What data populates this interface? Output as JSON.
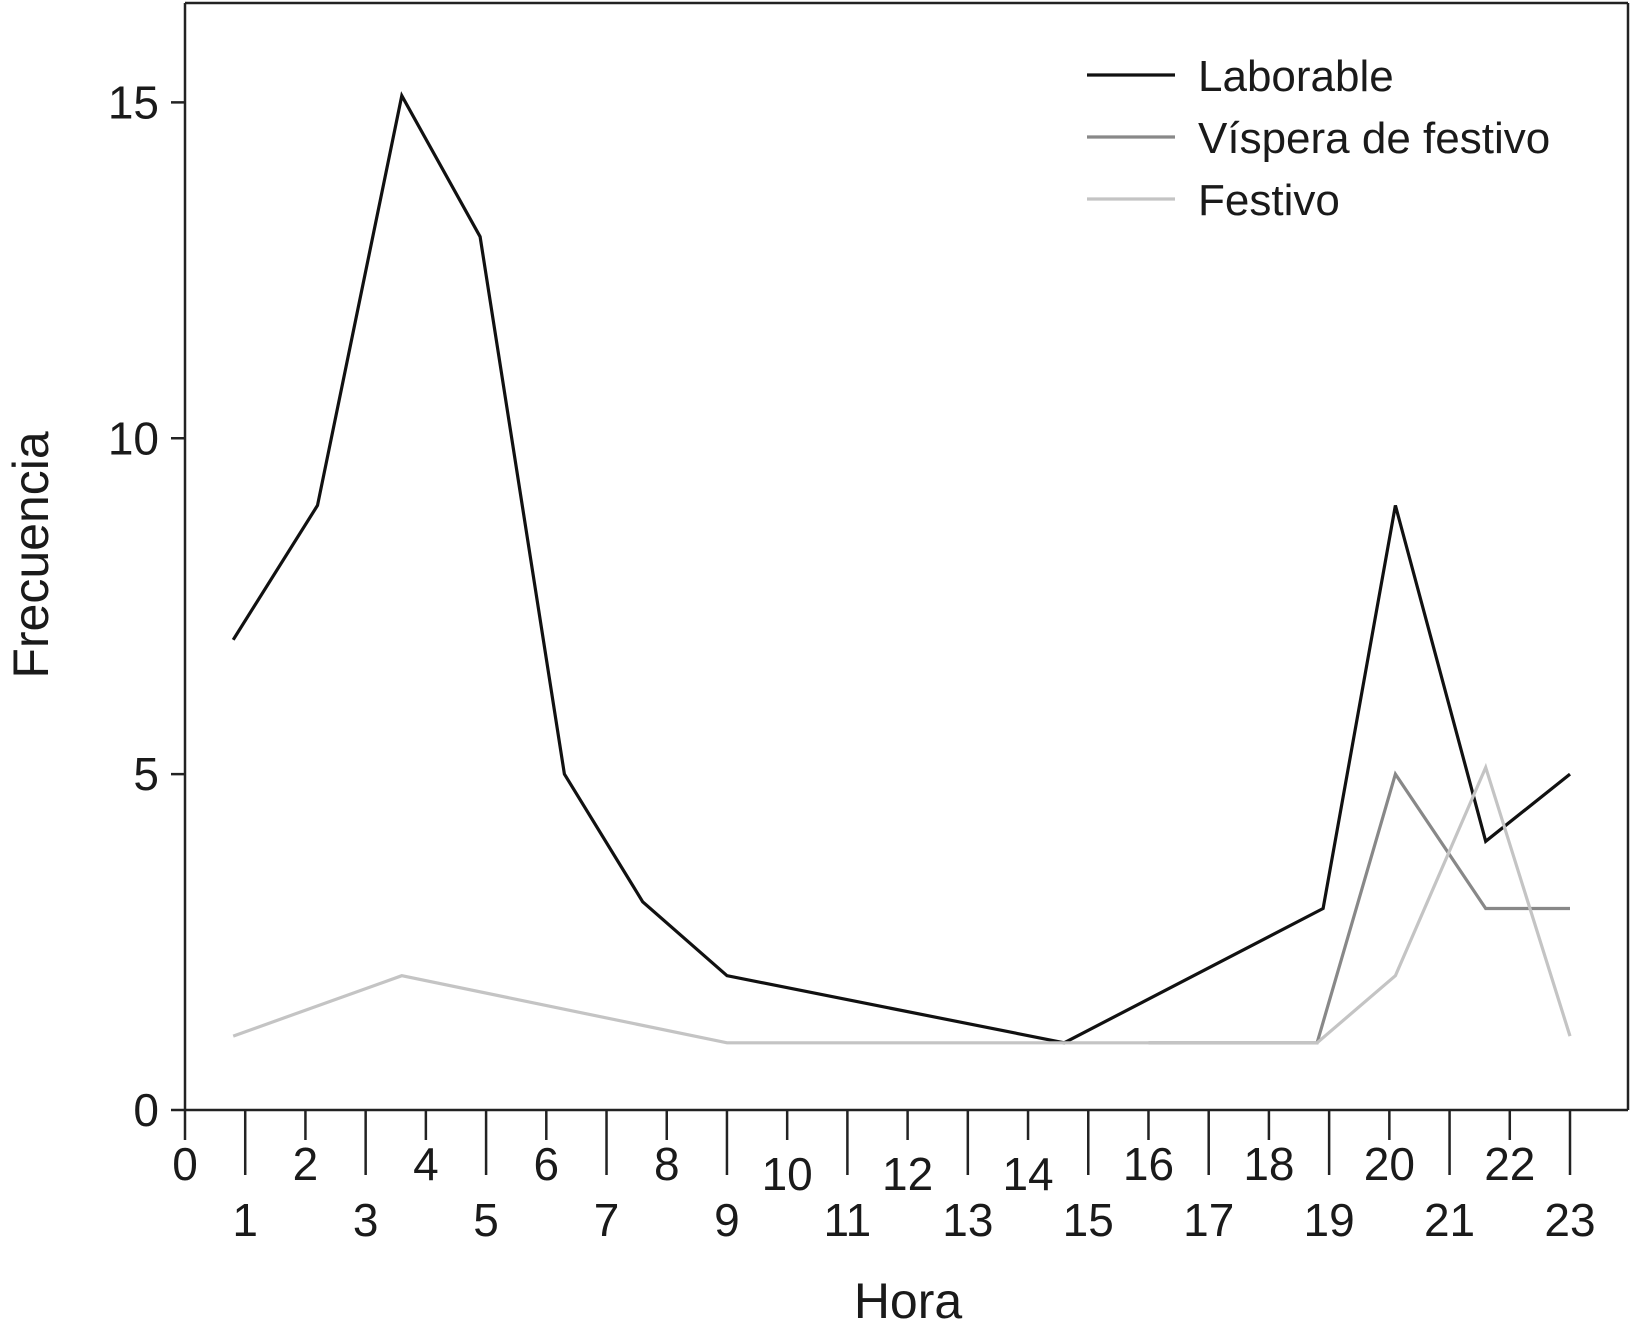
{
  "chart_data": {
    "type": "line",
    "xlabel": "Hora",
    "ylabel": "Frecuencia",
    "xlim": [
      0,
      23
    ],
    "ylim": [
      0,
      15
    ],
    "yticks": [
      0,
      5,
      10,
      15
    ],
    "xticks": [
      0,
      1,
      2,
      3,
      4,
      5,
      6,
      7,
      8,
      9,
      10,
      11,
      12,
      13,
      14,
      15,
      16,
      17,
      18,
      19,
      20,
      21,
      22,
      23
    ],
    "grid": false,
    "legend_position": "top-right",
    "series": [
      {
        "name": "Laborable",
        "color": "#111111",
        "points": [
          [
            0.8,
            7
          ],
          [
            2.2,
            9
          ],
          [
            3.6,
            15.1
          ],
          [
            4.9,
            13
          ],
          [
            6.3,
            5
          ],
          [
            7.6,
            3.1
          ],
          [
            9.0,
            2
          ],
          [
            14.6,
            1
          ],
          [
            18.9,
            3
          ],
          [
            20.1,
            9
          ],
          [
            21.6,
            4
          ],
          [
            23.0,
            5
          ]
        ]
      },
      {
        "name": "Víspera de festivo",
        "color": "#888888",
        "points": [
          [
            16.0,
            1
          ],
          [
            18.8,
            1
          ],
          [
            20.1,
            5
          ],
          [
            21.6,
            3
          ],
          [
            23.0,
            3
          ]
        ]
      },
      {
        "name": "Festivo",
        "color": "#c4c4c4",
        "points": [
          [
            0.8,
            1.1
          ],
          [
            3.6,
            2
          ],
          [
            9.0,
            1
          ],
          [
            18.8,
            1
          ],
          [
            20.1,
            2
          ],
          [
            21.6,
            5.1
          ],
          [
            23.0,
            1.1
          ]
        ]
      }
    ]
  }
}
